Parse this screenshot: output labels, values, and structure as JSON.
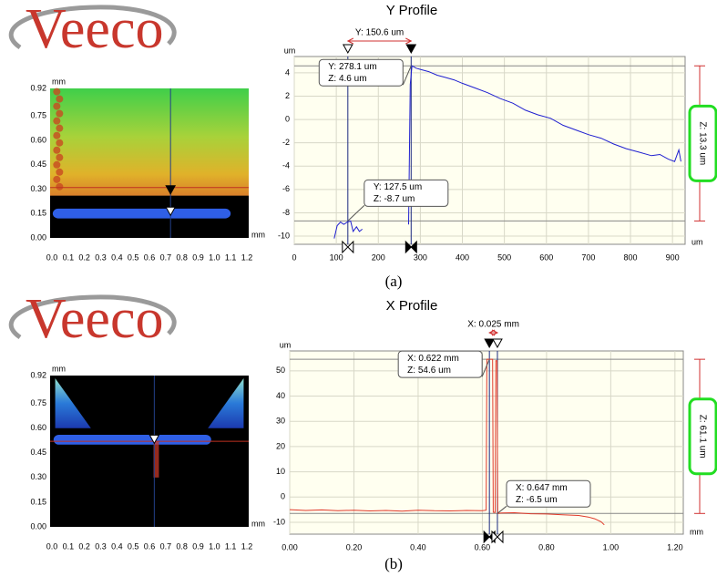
{
  "panels": [
    {
      "logo": "Veeco",
      "label": "(a)"
    },
    {
      "logo": "Veeco",
      "label": "(b)"
    }
  ],
  "chart_data": [
    {
      "type": "image",
      "x_unit": "mm",
      "y_unit": "mm",
      "xlim": [
        0,
        1.2
      ],
      "ylim": [
        0,
        0.92
      ],
      "xticks": [
        {
          "value": 0,
          "label": "0.0"
        },
        0.1,
        0.2,
        0.3,
        0.4,
        0.5,
        0.6,
        0.7,
        0.8,
        0.9,
        {
          "value": 1,
          "label": "1.0"
        },
        1.1,
        1.2
      ],
      "yticks": [
        {
          "value": 0,
          "label": "0.00"
        },
        0.15,
        {
          "value": 0.3,
          "label": "0.30"
        },
        0.45,
        {
          "value": 0.6,
          "label": "0.60"
        },
        0.75,
        0.92
      ]
    },
    {
      "type": "line",
      "title": "Y Profile",
      "x_unit": "um",
      "y_unit": "um",
      "xlim": [
        0,
        930
      ],
      "ylim": [
        -10.7,
        5.4
      ],
      "xticks": [
        0,
        100,
        200,
        300,
        400,
        500,
        600,
        700,
        800,
        900
      ],
      "yticks": [
        -10,
        -8,
        -6,
        -4,
        -2,
        0,
        2,
        4
      ],
      "grid": true,
      "series": [
        {
          "color": "#1f1fd0",
          "x": [
            95,
            102,
            110,
            118,
            126,
            134,
            140,
            148,
            155,
            162,
            200,
            272,
            276,
            280,
            290,
            300,
            320,
            340,
            360,
            380,
            400,
            430,
            460,
            490,
            520,
            550,
            580,
            610,
            640,
            670,
            700,
            730,
            760,
            790,
            820,
            850,
            870,
            890,
            905,
            915,
            920
          ],
          "values": [
            -10.2,
            -9.1,
            -8.8,
            -9.0,
            -8.8,
            -8.7,
            -9.6,
            -9.2,
            -9.6,
            -9.4,
            null,
            -9.0,
            3.0,
            4.6,
            4.4,
            4.3,
            4.1,
            3.8,
            3.6,
            3.4,
            3.1,
            2.7,
            2.3,
            1.8,
            1.4,
            0.8,
            0.4,
            0.1,
            -0.5,
            -0.9,
            -1.3,
            -1.6,
            -2.1,
            -2.5,
            -2.8,
            -3.1,
            -3.0,
            -3.4,
            -3.6,
            -2.6,
            -3.6
          ]
        }
      ],
      "cursors": [
        {
          "x": {
            "value": 127.5,
            "label": "Y: 127.5 um"
          },
          "y": {
            "value": -8.7,
            "label": "Z: -8.7 um"
          }
        },
        {
          "x": {
            "value": 278.1,
            "label": "Y: 278.1 um"
          },
          "y": {
            "value": 4.6,
            "label": "Z: 4.6 um"
          }
        }
      ],
      "delta_x": {
        "value": 150.6,
        "label": "Y: 150.6 um"
      },
      "delta_z": {
        "value": 13.3,
        "label": "Z: 13.3 um"
      }
    },
    {
      "type": "image",
      "x_unit": "mm",
      "y_unit": "mm",
      "xlim": [
        0,
        1.2
      ],
      "ylim": [
        0,
        0.92
      ],
      "xticks": [
        {
          "value": 0,
          "label": "0.0"
        },
        0.1,
        0.2,
        0.3,
        0.4,
        0.5,
        0.6,
        0.7,
        0.8,
        0.9,
        {
          "value": 1,
          "label": "1.0"
        },
        1.1,
        1.2
      ],
      "yticks": [
        {
          "value": 0,
          "label": "0.00"
        },
        0.15,
        {
          "value": 0.3,
          "label": "0.30"
        },
        0.45,
        {
          "value": 0.6,
          "label": "0.60"
        },
        0.75,
        0.92
      ]
    },
    {
      "type": "line",
      "title": "X Profile",
      "x_unit": "mm",
      "y_unit": "um",
      "xlim": [
        0,
        1.226
      ],
      "ylim": [
        -14.7,
        57.9
      ],
      "xticks": [
        {
          "value": 0,
          "label": "0.00"
        },
        {
          "value": 0.2,
          "label": "0.20"
        },
        {
          "value": 0.4,
          "label": "0.40"
        },
        {
          "value": 0.6,
          "label": "0.60"
        },
        {
          "value": 0.8,
          "label": "0.80"
        },
        {
          "value": 1,
          "label": "1.00"
        },
        {
          "value": 1.2,
          "label": "1.20"
        }
      ],
      "yticks": [
        -10,
        0,
        10,
        20,
        30,
        40,
        50
      ],
      "grid": true,
      "series": [
        {
          "color": "#e03a2a",
          "x": [
            0,
            0.05,
            0.1,
            0.15,
            0.2,
            0.25,
            0.3,
            0.35,
            0.4,
            0.45,
            0.5,
            0.55,
            0.6,
            0.612,
            0.614,
            0.622,
            0.632,
            0.634,
            0.64,
            0.642,
            0.646,
            0.648,
            0.66,
            0.7,
            0.75,
            0.8,
            0.85,
            0.9,
            0.93,
            0.95,
            0.97,
            0.98
          ],
          "values": [
            -5.0,
            -5.3,
            -5.1,
            -5.4,
            -5.2,
            -5.5,
            -5.3,
            -5.6,
            -5.2,
            -5.4,
            -5.5,
            -5.3,
            -5.4,
            -5.2,
            54.6,
            54.6,
            54.6,
            -6.0,
            -6.1,
            54.0,
            54.0,
            -6.5,
            -6.3,
            -6.2,
            -6.6,
            -6.7,
            -7.0,
            -7.3,
            -7.9,
            -8.6,
            -9.8,
            -11.0
          ]
        }
      ],
      "cursors": [
        {
          "x": {
            "value": 0.622,
            "label": "X: 0.622 mm"
          },
          "y": {
            "value": 54.6,
            "label": "Z: 54.6 um"
          }
        },
        {
          "x": {
            "value": 0.647,
            "label": "X: 0.647 mm"
          },
          "y": {
            "value": -6.5,
            "label": "Z: -6.5 um"
          }
        }
      ],
      "delta_x": {
        "value": 0.025,
        "label": "X: 0.025 mm"
      },
      "delta_z": {
        "value": 61.1,
        "label": "Z: 61.1 um"
      }
    }
  ]
}
